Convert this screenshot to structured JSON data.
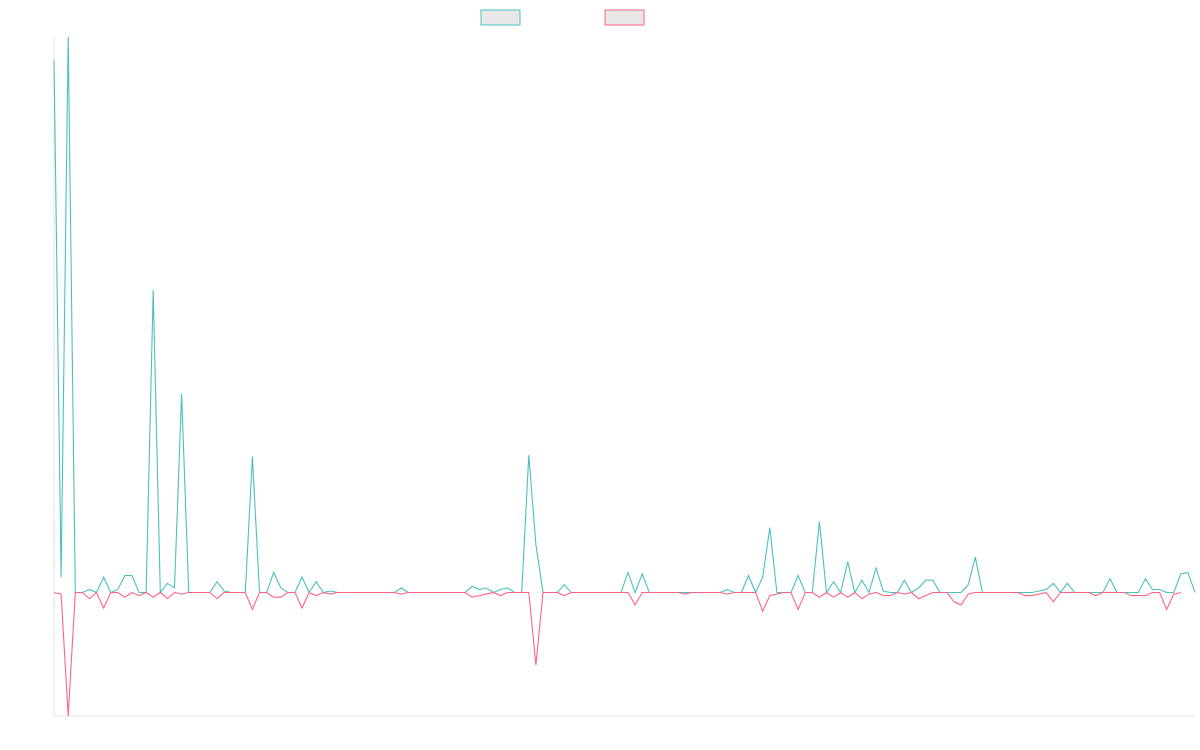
{
  "chart_data": {
    "type": "line",
    "title": "",
    "xlabel": "",
    "ylabel": "",
    "grid": false,
    "legend": "top-center",
    "ylim": [
      -8,
      36
    ],
    "series": [
      {
        "color": "#4bc0c0",
        "values": [
          34.5,
          1.0,
          36.0,
          0,
          0,
          0.2,
          0,
          1.0,
          0,
          0.2,
          1.1,
          1.1,
          0,
          0,
          19.6,
          0,
          0.6,
          0.3,
          12.9,
          0,
          0,
          0,
          0,
          0.7,
          0.1,
          0,
          0,
          0,
          8.8,
          0,
          0,
          1.3,
          0.3,
          0,
          0,
          1.0,
          0,
          0.7,
          0,
          0.1,
          0,
          0,
          0,
          0,
          0,
          0,
          0,
          0,
          0,
          0.3,
          0,
          0,
          0,
          0,
          0,
          0,
          0,
          0,
          0,
          0.4,
          0.2,
          0.3,
          0,
          0.2,
          0.3,
          0,
          0,
          8.9,
          3.1,
          0,
          0,
          0,
          0.5,
          0,
          0,
          0,
          0,
          0,
          0,
          0,
          0,
          1.3,
          0,
          1.2,
          0,
          0,
          0,
          0,
          0,
          0,
          0,
          0,
          0,
          0,
          0,
          0.2,
          0,
          0,
          1.1,
          0,
          1.0,
          4.2,
          0,
          0,
          0,
          1.1,
          0,
          0,
          4.6,
          0,
          0.7,
          0,
          2.0,
          0,
          0.8,
          0,
          1.6,
          0.1,
          0,
          0,
          0.8,
          0,
          0.3,
          0.8,
          0.8,
          0,
          0,
          0,
          0,
          0.5,
          2.3,
          0,
          0,
          0,
          0,
          0,
          0,
          0,
          0,
          0.1,
          0.2,
          0.6,
          0,
          0.6,
          0,
          0,
          0,
          0,
          0,
          0.9,
          0,
          0,
          0,
          0,
          0.9,
          0.2,
          0.2,
          0,
          0,
          1.2,
          1.3,
          0
        ]
      },
      {
        "color": "#ff6384",
        "values": [
          0,
          -0.1,
          -8.0,
          0,
          0,
          -0.4,
          0,
          -1.0,
          0,
          0,
          -0.3,
          0,
          -0.2,
          0,
          -0.3,
          0,
          -0.4,
          0,
          -0.1,
          0,
          0,
          0,
          0,
          -0.4,
          0,
          0,
          0,
          0,
          -1.1,
          0,
          0,
          -0.3,
          -0.3,
          0,
          0,
          -1.0,
          0,
          -0.2,
          0,
          -0.1,
          0,
          0,
          0,
          0,
          0,
          0,
          0,
          0,
          0,
          -0.1,
          0,
          0,
          0,
          0,
          0,
          0,
          0,
          0,
          0,
          -0.3,
          -0.2,
          -0.1,
          0,
          -0.2,
          0,
          0,
          0,
          0,
          -4.7,
          0,
          0,
          0,
          -0.2,
          0,
          0,
          0,
          0,
          0,
          0,
          0,
          0,
          0,
          -0.8,
          0,
          0,
          0,
          0,
          0,
          0,
          -0.1,
          0,
          0,
          0,
          0,
          0,
          -0.1,
          0,
          0,
          0,
          0,
          -1.2,
          -0.2,
          -0.1,
          0,
          0,
          -1.1,
          0,
          0,
          -0.3,
          0,
          -0.3,
          0,
          -0.3,
          0,
          -0.4,
          -0.1,
          0,
          -0.2,
          -0.2,
          0,
          -0.1,
          0,
          -0.4,
          -0.2,
          0,
          0,
          0,
          -0.6,
          -0.8,
          -0.1,
          0,
          0,
          0,
          0,
          0,
          0,
          0,
          -0.2,
          -0.2,
          -0.1,
          0,
          -0.6,
          0,
          0,
          0,
          0,
          0,
          -0.2,
          0,
          0,
          0,
          0,
          -0.2,
          -0.2,
          -0.2,
          0,
          0,
          -1.1,
          -0.1,
          0
        ]
      }
    ]
  }
}
